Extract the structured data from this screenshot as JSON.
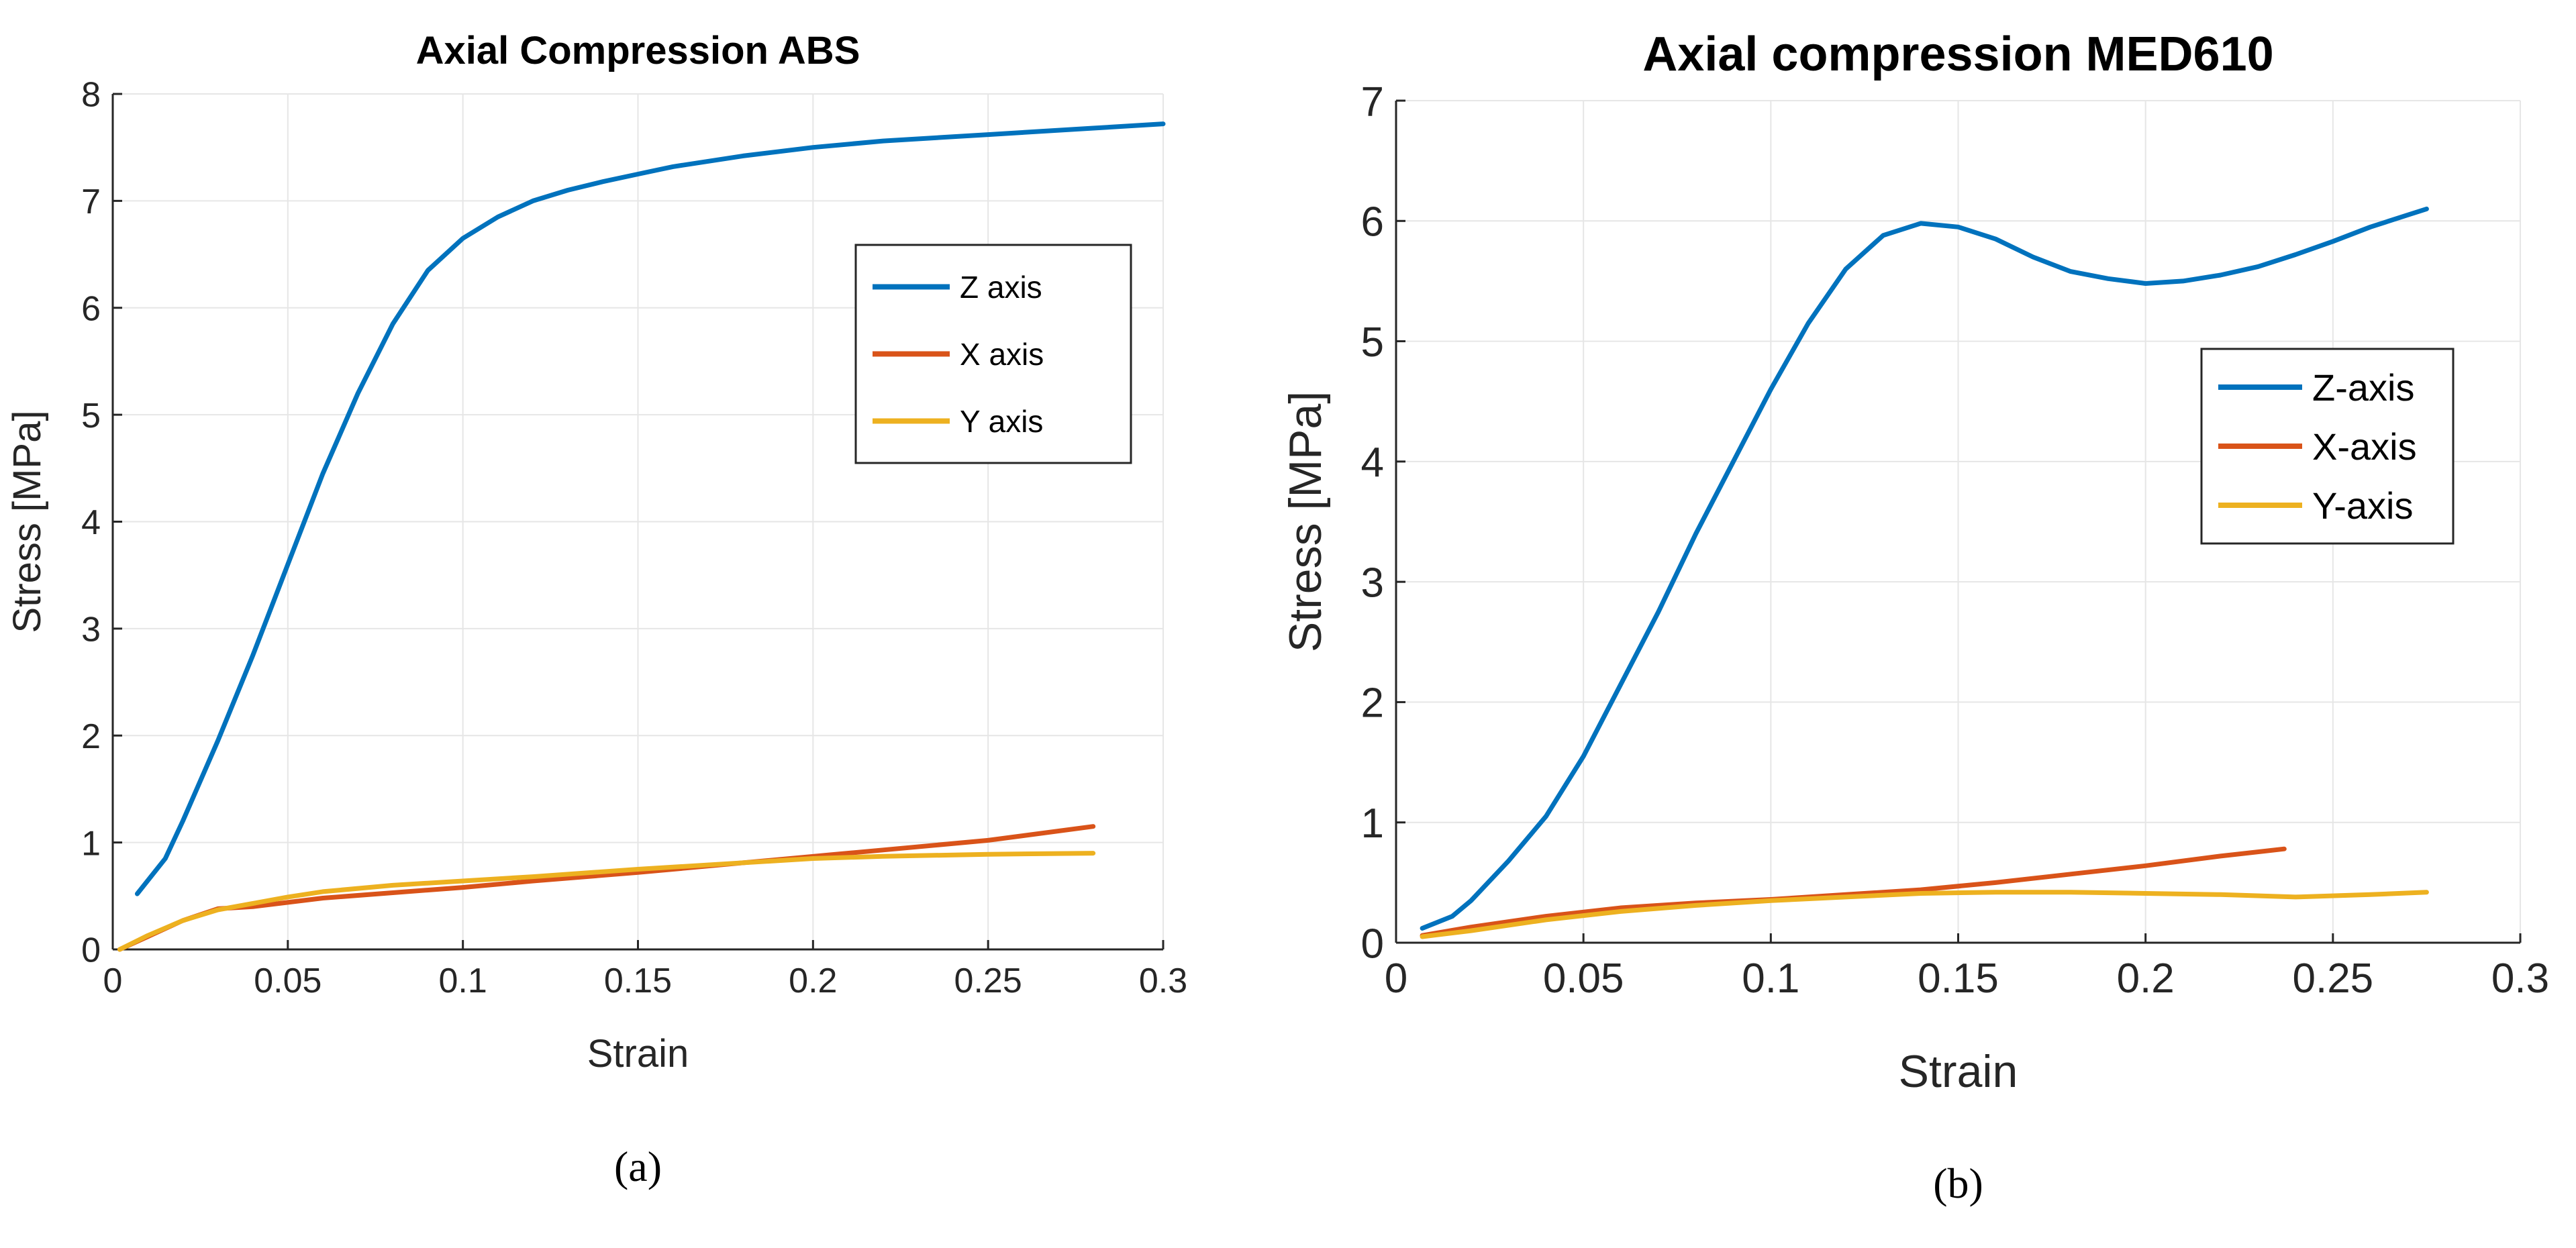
{
  "colors": {
    "z": "#0072BD",
    "x": "#D95319",
    "y": "#EDB120"
  },
  "chart_data": [
    {
      "type": "line",
      "panel_label": "(a)",
      "title": "Axial Compression ABS",
      "xlabel": "Strain",
      "ylabel": "Stress [MPa]",
      "xlim": [
        0,
        0.3
      ],
      "ylim": [
        0,
        8
      ],
      "xticks": [
        0,
        0.05,
        0.1,
        0.15,
        0.2,
        0.25,
        0.3
      ],
      "xtick_labels": [
        "0",
        "0.05",
        "0.1",
        "0.15",
        "0.2",
        "0.25",
        "0.3"
      ],
      "yticks": [
        0,
        1,
        2,
        3,
        4,
        5,
        6,
        7,
        8
      ],
      "ytick_labels": [
        "0",
        "1",
        "2",
        "3",
        "4",
        "5",
        "6",
        "7",
        "8"
      ],
      "grid": true,
      "legend_position": "upper-right",
      "series": [
        {
          "name": "Z axis",
          "color_key": "z",
          "x": [
            0.007,
            0.015,
            0.02,
            0.03,
            0.04,
            0.05,
            0.06,
            0.07,
            0.08,
            0.09,
            0.1,
            0.11,
            0.12,
            0.13,
            0.14,
            0.15,
            0.16,
            0.18,
            0.2,
            0.22,
            0.25,
            0.28,
            0.3
          ],
          "y": [
            0.52,
            0.85,
            1.2,
            1.95,
            2.75,
            3.6,
            4.45,
            5.2,
            5.85,
            6.35,
            6.65,
            6.85,
            7.0,
            7.1,
            7.18,
            7.25,
            7.32,
            7.42,
            7.5,
            7.56,
            7.62,
            7.68,
            7.72
          ]
        },
        {
          "name": "X axis",
          "color_key": "x",
          "x": [
            0.002,
            0.01,
            0.02,
            0.03,
            0.04,
            0.05,
            0.06,
            0.08,
            0.1,
            0.12,
            0.15,
            0.18,
            0.2,
            0.22,
            0.25,
            0.28
          ],
          "y": [
            0.0,
            0.12,
            0.27,
            0.38,
            0.4,
            0.44,
            0.48,
            0.53,
            0.58,
            0.64,
            0.72,
            0.81,
            0.87,
            0.93,
            1.02,
            1.15
          ]
        },
        {
          "name": "Y axis",
          "color_key": "y",
          "x": [
            0.002,
            0.01,
            0.02,
            0.03,
            0.04,
            0.05,
            0.06,
            0.08,
            0.1,
            0.12,
            0.15,
            0.18,
            0.2,
            0.22,
            0.25,
            0.28
          ],
          "y": [
            0.0,
            0.13,
            0.27,
            0.37,
            0.43,
            0.49,
            0.54,
            0.6,
            0.64,
            0.68,
            0.75,
            0.81,
            0.85,
            0.87,
            0.89,
            0.9
          ]
        }
      ]
    },
    {
      "type": "line",
      "panel_label": "(b)",
      "title": "Axial compression MED610",
      "xlabel": "Strain",
      "ylabel": "Stress [MPa]",
      "xlim": [
        0,
        0.3
      ],
      "ylim": [
        0,
        7
      ],
      "xticks": [
        0,
        0.05,
        0.1,
        0.15,
        0.2,
        0.25,
        0.3
      ],
      "xtick_labels": [
        "0",
        "0.05",
        "0.1",
        "0.15",
        "0.2",
        "0.25",
        "0.3"
      ],
      "yticks": [
        0,
        1,
        2,
        3,
        4,
        5,
        6,
        7
      ],
      "ytick_labels": [
        "0",
        "1",
        "2",
        "3",
        "4",
        "5",
        "6",
        "7"
      ],
      "grid": true,
      "legend_position": "right",
      "series": [
        {
          "name": "Z-axis",
          "color_key": "z",
          "x": [
            0.007,
            0.015,
            0.02,
            0.03,
            0.04,
            0.05,
            0.06,
            0.07,
            0.08,
            0.09,
            0.1,
            0.11,
            0.12,
            0.13,
            0.14,
            0.15,
            0.16,
            0.17,
            0.18,
            0.19,
            0.2,
            0.21,
            0.22,
            0.23,
            0.24,
            0.25,
            0.26,
            0.27,
            0.275
          ],
          "y": [
            0.12,
            0.22,
            0.35,
            0.68,
            1.05,
            1.55,
            2.15,
            2.75,
            3.4,
            4.0,
            4.6,
            5.15,
            5.6,
            5.88,
            5.98,
            5.95,
            5.85,
            5.7,
            5.58,
            5.52,
            5.48,
            5.5,
            5.55,
            5.62,
            5.72,
            5.83,
            5.95,
            6.05,
            6.1
          ]
        },
        {
          "name": "X-axis",
          "color_key": "x",
          "x": [
            0.007,
            0.02,
            0.04,
            0.06,
            0.08,
            0.1,
            0.12,
            0.14,
            0.16,
            0.18,
            0.2,
            0.22,
            0.237
          ],
          "y": [
            0.06,
            0.13,
            0.22,
            0.29,
            0.33,
            0.36,
            0.4,
            0.44,
            0.5,
            0.57,
            0.64,
            0.72,
            0.78
          ]
        },
        {
          "name": "Y-axis",
          "color_key": "y",
          "x": [
            0.007,
            0.02,
            0.04,
            0.06,
            0.08,
            0.1,
            0.12,
            0.14,
            0.16,
            0.18,
            0.2,
            0.22,
            0.24,
            0.26,
            0.275
          ],
          "y": [
            0.05,
            0.1,
            0.19,
            0.26,
            0.31,
            0.35,
            0.38,
            0.41,
            0.42,
            0.42,
            0.41,
            0.4,
            0.38,
            0.4,
            0.42
          ]
        }
      ]
    }
  ]
}
